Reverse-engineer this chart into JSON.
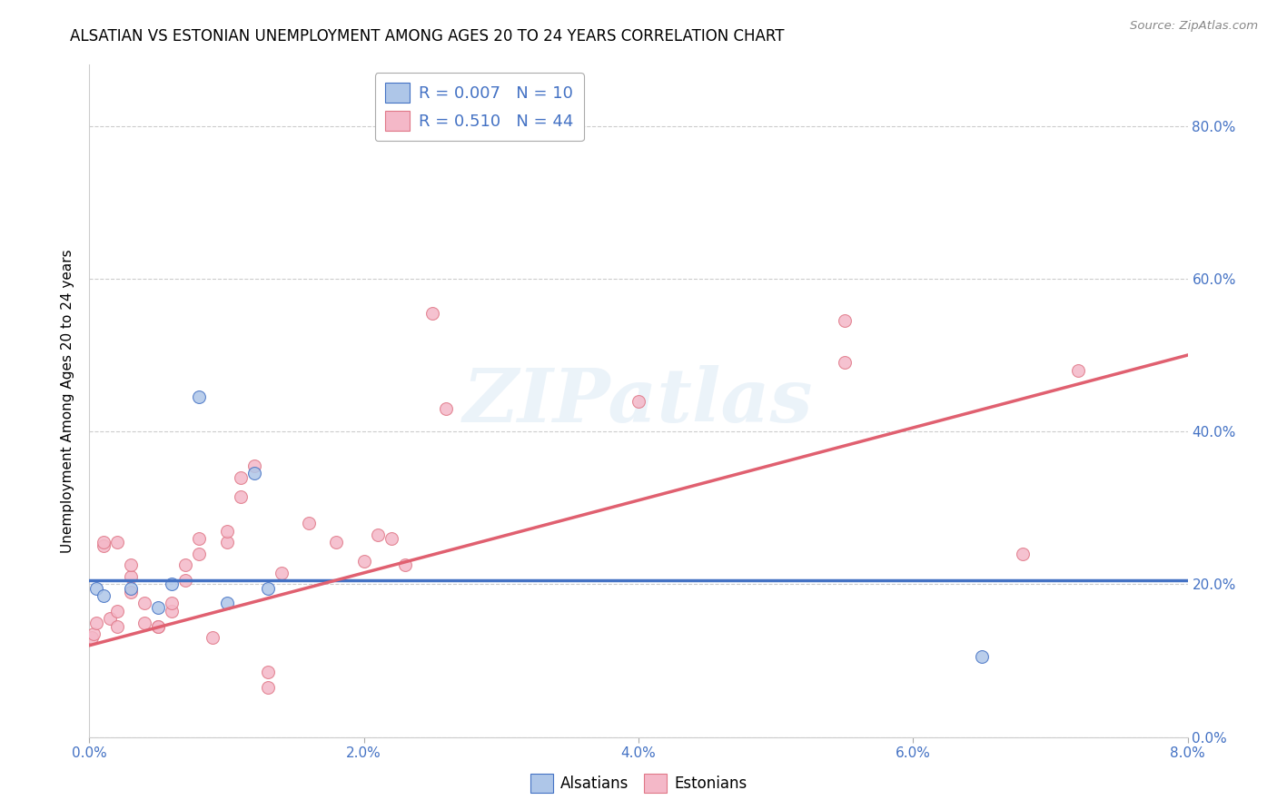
{
  "title": "ALSATIAN VS ESTONIAN UNEMPLOYMENT AMONG AGES 20 TO 24 YEARS CORRELATION CHART",
  "source": "Source: ZipAtlas.com",
  "ylabel": "Unemployment Among Ages 20 to 24 years",
  "xlim": [
    0.0,
    0.08
  ],
  "ylim": [
    0.0,
    0.88
  ],
  "xticks": [
    0.0,
    0.02,
    0.04,
    0.06,
    0.08
  ],
  "xticklabels": [
    "0.0%",
    "2.0%",
    "4.0%",
    "6.0%",
    "8.0%"
  ],
  "yticks": [
    0.0,
    0.2,
    0.4,
    0.6,
    0.8
  ],
  "yticklabels": [
    "0.0%",
    "20.0%",
    "40.0%",
    "60.0%",
    "80.0%"
  ],
  "legend_r_alsatians": "0.007",
  "legend_n_alsatians": "10",
  "legend_r_estonians": "0.510",
  "legend_n_estonians": "44",
  "alsatian_color": "#aec6e8",
  "estonian_color": "#f4b8c8",
  "alsatian_line_color": "#4472C4",
  "estonian_line_color": "#e06070",
  "watermark_text": "ZIPatlas",
  "blue_color": "#4472C4",
  "pink_color": "#e07888",
  "alsatian_x": [
    0.0005,
    0.001,
    0.003,
    0.005,
    0.006,
    0.008,
    0.01,
    0.012,
    0.013,
    0.065
  ],
  "alsatian_y": [
    0.195,
    0.185,
    0.195,
    0.17,
    0.2,
    0.445,
    0.175,
    0.345,
    0.195,
    0.105
  ],
  "estonian_x": [
    0.0002,
    0.0003,
    0.0005,
    0.001,
    0.001,
    0.0015,
    0.002,
    0.002,
    0.002,
    0.003,
    0.003,
    0.003,
    0.004,
    0.004,
    0.005,
    0.005,
    0.006,
    0.006,
    0.007,
    0.007,
    0.008,
    0.008,
    0.009,
    0.01,
    0.01,
    0.011,
    0.011,
    0.012,
    0.013,
    0.013,
    0.014,
    0.016,
    0.018,
    0.02,
    0.021,
    0.022,
    0.023,
    0.025,
    0.026,
    0.04,
    0.055,
    0.055,
    0.068,
    0.072
  ],
  "estonian_y": [
    0.13,
    0.135,
    0.15,
    0.25,
    0.255,
    0.155,
    0.145,
    0.165,
    0.255,
    0.19,
    0.21,
    0.225,
    0.15,
    0.175,
    0.145,
    0.145,
    0.165,
    0.175,
    0.205,
    0.225,
    0.24,
    0.26,
    0.13,
    0.255,
    0.27,
    0.315,
    0.34,
    0.355,
    0.065,
    0.085,
    0.215,
    0.28,
    0.255,
    0.23,
    0.265,
    0.26,
    0.225,
    0.555,
    0.43,
    0.44,
    0.545,
    0.49,
    0.24,
    0.48
  ],
  "alsatian_line_x0": 0.0,
  "alsatian_line_x1": 0.08,
  "alsatian_line_y0": 0.205,
  "alsatian_line_y1": 0.205,
  "estonian_line_x0": 0.0,
  "estonian_line_x1": 0.08,
  "estonian_line_y0": 0.12,
  "estonian_line_y1": 0.5,
  "background_color": "#ffffff",
  "grid_color": "#cccccc",
  "title_fontsize": 12,
  "axis_label_fontsize": 11,
  "tick_fontsize": 11,
  "marker_size": 100
}
